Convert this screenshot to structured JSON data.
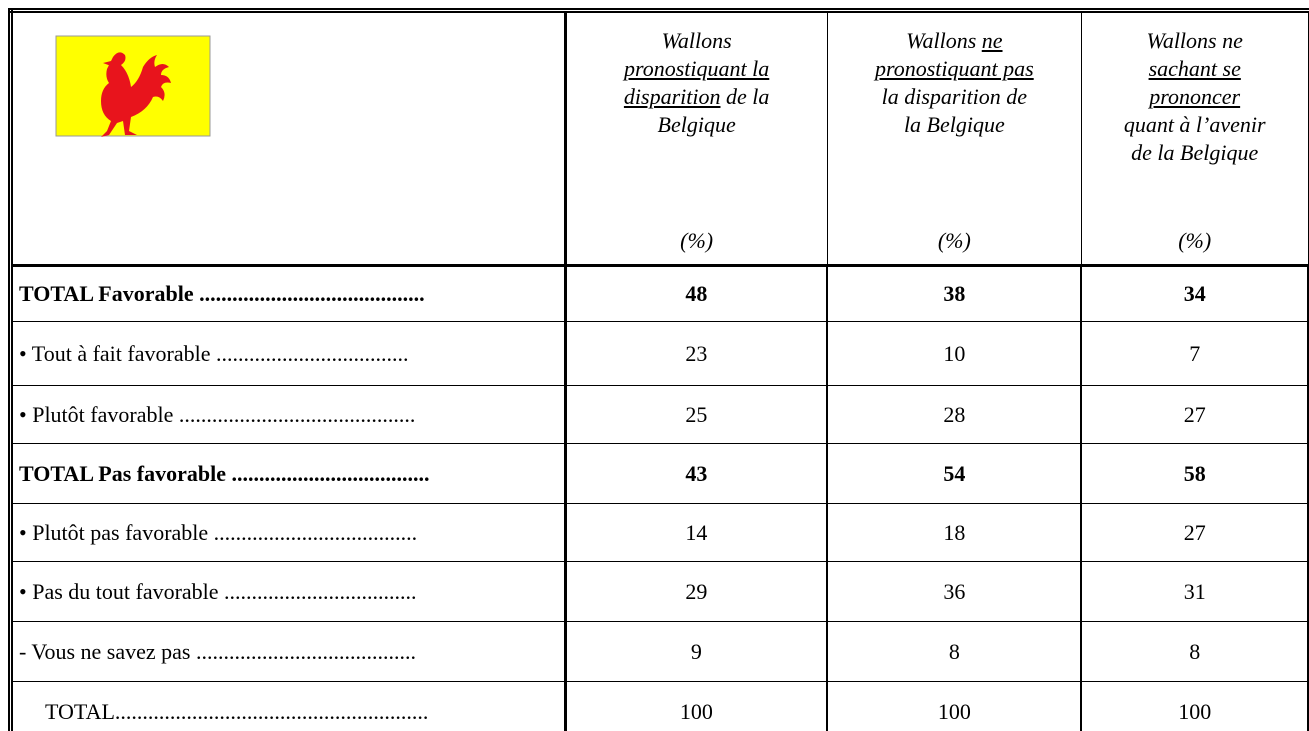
{
  "table": {
    "header": [
      {
        "lines": [
          [
            {
              "text": "Wallons",
              "underline": false
            }
          ],
          [
            {
              "text": "pronostiquant la",
              "underline": true
            }
          ],
          [
            {
              "text": "disparition",
              "underline": true
            },
            {
              "text": " de la",
              "underline": false
            }
          ],
          [
            {
              "text": "Belgique",
              "underline": false
            }
          ]
        ],
        "unit": "(%)"
      },
      {
        "lines": [
          [
            {
              "text": "Wallons ",
              "underline": false
            },
            {
              "text": "ne",
              "underline": true
            }
          ],
          [
            {
              "text": "pronostiquant pas",
              "underline": true
            }
          ],
          [
            {
              "text": "la disparition de",
              "underline": false
            }
          ],
          [
            {
              "text": "la Belgique",
              "underline": false
            }
          ]
        ],
        "unit": "(%)"
      },
      {
        "lines": [
          [
            {
              "text": "Wallons ne",
              "underline": false
            }
          ],
          [
            {
              "text": "sachant se",
              "underline": true
            }
          ],
          [
            {
              "text": "prononcer",
              "underline": true
            }
          ],
          [
            {
              "text": "quant à l’avenir",
              "underline": false
            }
          ],
          [
            {
              "text": "de la Belgique",
              "underline": false
            }
          ]
        ],
        "unit": "(%)"
      }
    ],
    "rows": [
      {
        "label": "TOTAL Favorable .........................................",
        "values": [
          "48",
          "38",
          "34"
        ],
        "bold": true
      },
      {
        "label": "• Tout à fait favorable ...................................",
        "values": [
          "23",
          "10",
          "7"
        ],
        "bold": false
      },
      {
        "label": "• Plutôt favorable ...........................................",
        "values": [
          "25",
          "28",
          "27"
        ],
        "bold": false
      },
      {
        "label": "TOTAL Pas favorable ....................................",
        "values": [
          "43",
          "54",
          "58"
        ],
        "bold": true
      },
      {
        "label": "• Plutôt pas favorable .....................................",
        "values": [
          "14",
          "18",
          "27"
        ],
        "bold": false
      },
      {
        "label": "• Pas du tout favorable ...................................",
        "values": [
          "29",
          "36",
          "31"
        ],
        "bold": false
      },
      {
        "label": "-   Vous ne savez pas ........................................",
        "values": [
          "9",
          "8",
          "8"
        ],
        "bold": false
      },
      {
        "label": "TOTAL.........................................................",
        "values": [
          "100",
          "100",
          "100"
        ],
        "bold": false
      }
    ]
  }
}
